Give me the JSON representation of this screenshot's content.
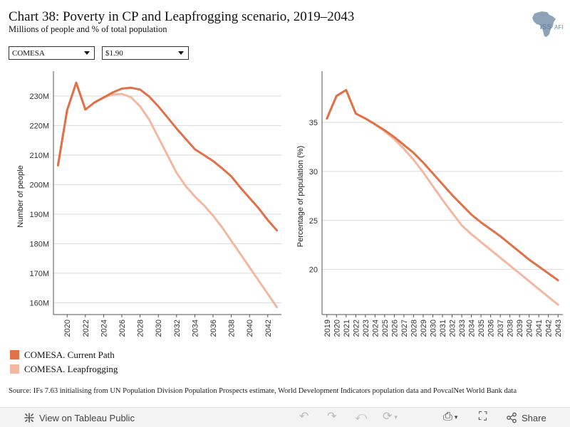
{
  "header": {
    "title": "Chart 38: Poverty in CP and Leapfrogging scenario, 2019–2043",
    "subtitle": "Millions of people and % of total population",
    "logo_text": "ISS",
    "logo_subtext": "AFI"
  },
  "filters": {
    "region": "COMESA",
    "threshold": "$1.90"
  },
  "colors": {
    "current_path": "#e07048",
    "leapfrogging": "#f2b8a1",
    "axis": "#555555",
    "grid": "#d9d9d9",
    "logo": "#8fa3b8"
  },
  "chart_data": [
    {
      "type": "line",
      "ylabel": "Number of people",
      "ylim": [
        156,
        236
      ],
      "yticks": [
        160,
        170,
        180,
        190,
        200,
        210,
        220,
        230
      ],
      "ytick_labels": [
        "160M",
        "170M",
        "180M",
        "190M",
        "200M",
        "210M",
        "220M",
        "230M"
      ],
      "xlim": [
        2018.5,
        2043.5
      ],
      "xticks": [
        2020,
        2022,
        2024,
        2026,
        2028,
        2030,
        2032,
        2034,
        2036,
        2038,
        2040,
        2042
      ],
      "grid": true,
      "x": [
        2019,
        2020,
        2021,
        2022,
        2023,
        2024,
        2025,
        2026,
        2027,
        2028,
        2029,
        2030,
        2031,
        2032,
        2033,
        2034,
        2035,
        2036,
        2037,
        2038,
        2039,
        2040,
        2041,
        2042,
        2043
      ],
      "series": [
        {
          "name": "COMESA. Current Path",
          "values": [
            206.5,
            225.2,
            234.5,
            225.4,
            227.8,
            229.5,
            231.2,
            232.5,
            232.8,
            232.2,
            229.8,
            226.5,
            222.8,
            219.0,
            215.5,
            212.0,
            210.0,
            208.0,
            205.5,
            202.8,
            199.0,
            195.5,
            192.0,
            188.0,
            184.5
          ]
        },
        {
          "name": "COMESA. Leapfrogging",
          "values": [
            206.5,
            225.2,
            234.5,
            225.4,
            227.8,
            229.5,
            230.5,
            230.7,
            229.6,
            226.5,
            222.0,
            216.0,
            210.0,
            204.0,
            199.5,
            196.0,
            193.0,
            189.5,
            185.5,
            181.0,
            176.5,
            172.0,
            167.5,
            163.0,
            158.5
          ]
        }
      ]
    },
    {
      "type": "line",
      "ylabel": "Percentage of population (%)",
      "ylim": [
        15.4,
        39.5
      ],
      "yticks": [
        20,
        25,
        30,
        35
      ],
      "ytick_labels": [
        "20",
        "25",
        "30",
        "35"
      ],
      "xlim": [
        2018.5,
        2043.5
      ],
      "xticks": [
        2019,
        2020,
        2021,
        2022,
        2023,
        2024,
        2025,
        2026,
        2027,
        2028,
        2029,
        2030,
        2031,
        2032,
        2033,
        2034,
        2035,
        2036,
        2037,
        2038,
        2039,
        2040,
        2041,
        2042,
        2043
      ],
      "grid": true,
      "x": [
        2019,
        2020,
        2021,
        2022,
        2023,
        2024,
        2025,
        2026,
        2027,
        2028,
        2029,
        2030,
        2031,
        2032,
        2033,
        2034,
        2035,
        2036,
        2037,
        2038,
        2039,
        2040,
        2041,
        2042,
        2043
      ],
      "series": [
        {
          "name": "COMESA. Current Path",
          "values": [
            35.4,
            37.7,
            38.3,
            35.9,
            35.4,
            34.8,
            34.2,
            33.5,
            32.7,
            31.9,
            30.9,
            29.8,
            28.7,
            27.6,
            26.6,
            25.6,
            24.8,
            24.1,
            23.4,
            22.6,
            21.8,
            21.0,
            20.3,
            19.6,
            18.9
          ]
        },
        {
          "name": "COMESA. Leapfrogging",
          "values": [
            35.4,
            37.7,
            38.3,
            35.9,
            35.4,
            34.8,
            34.1,
            33.3,
            32.3,
            31.2,
            29.9,
            28.5,
            27.1,
            25.8,
            24.5,
            23.6,
            22.8,
            22.0,
            21.2,
            20.4,
            19.6,
            18.8,
            18.0,
            17.2,
            16.4
          ]
        }
      ]
    }
  ],
  "legend": {
    "items": [
      "COMESA. Current Path",
      "COMESA. Leapfrogging"
    ]
  },
  "source_text": "Source: IFs 7.63 initialising from UN Population Division Population Prospects estimate, World Development Indicators population data and PovcalNet World Bank data",
  "toolbar": {
    "view_label": "View on Tableau Public",
    "share_label": "Share"
  }
}
